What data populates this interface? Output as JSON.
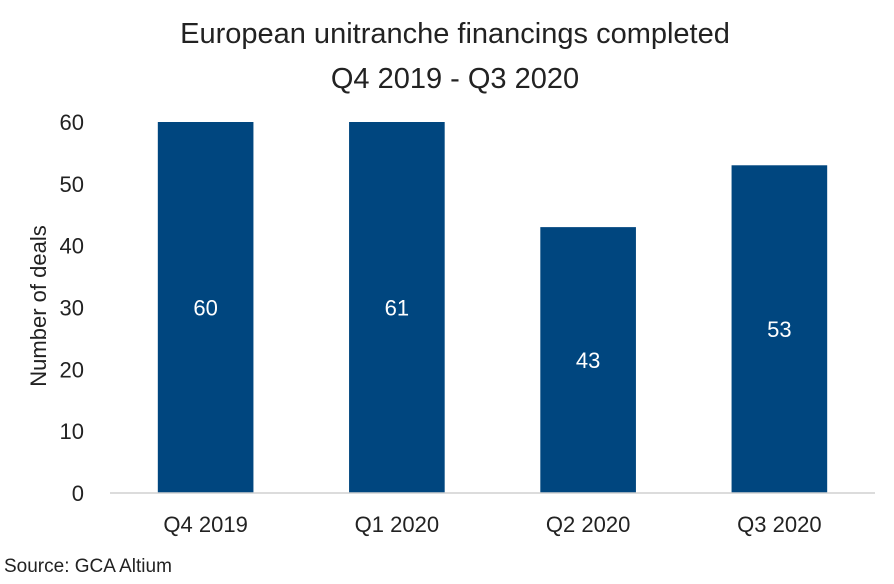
{
  "chart_data": {
    "type": "bar",
    "title": "European unitranche financings completed",
    "subtitle": "Q4 2019 - Q3 2020",
    "xlabel": "",
    "ylabel": "Number of deals",
    "categories": [
      "Q4 2019",
      "Q1 2020",
      "Q2 2020",
      "Q3 2020"
    ],
    "values": [
      60,
      61,
      43,
      53
    ],
    "data_labels": [
      "60",
      "61",
      "43",
      "53"
    ],
    "ylim": [
      0,
      60
    ],
    "yticks": [
      0,
      10,
      20,
      30,
      40,
      50,
      60
    ],
    "grid": false,
    "legend": "none",
    "bar_color": "#00467f",
    "data_label_color": "#ffffff"
  },
  "source": "Source: GCA Altium"
}
